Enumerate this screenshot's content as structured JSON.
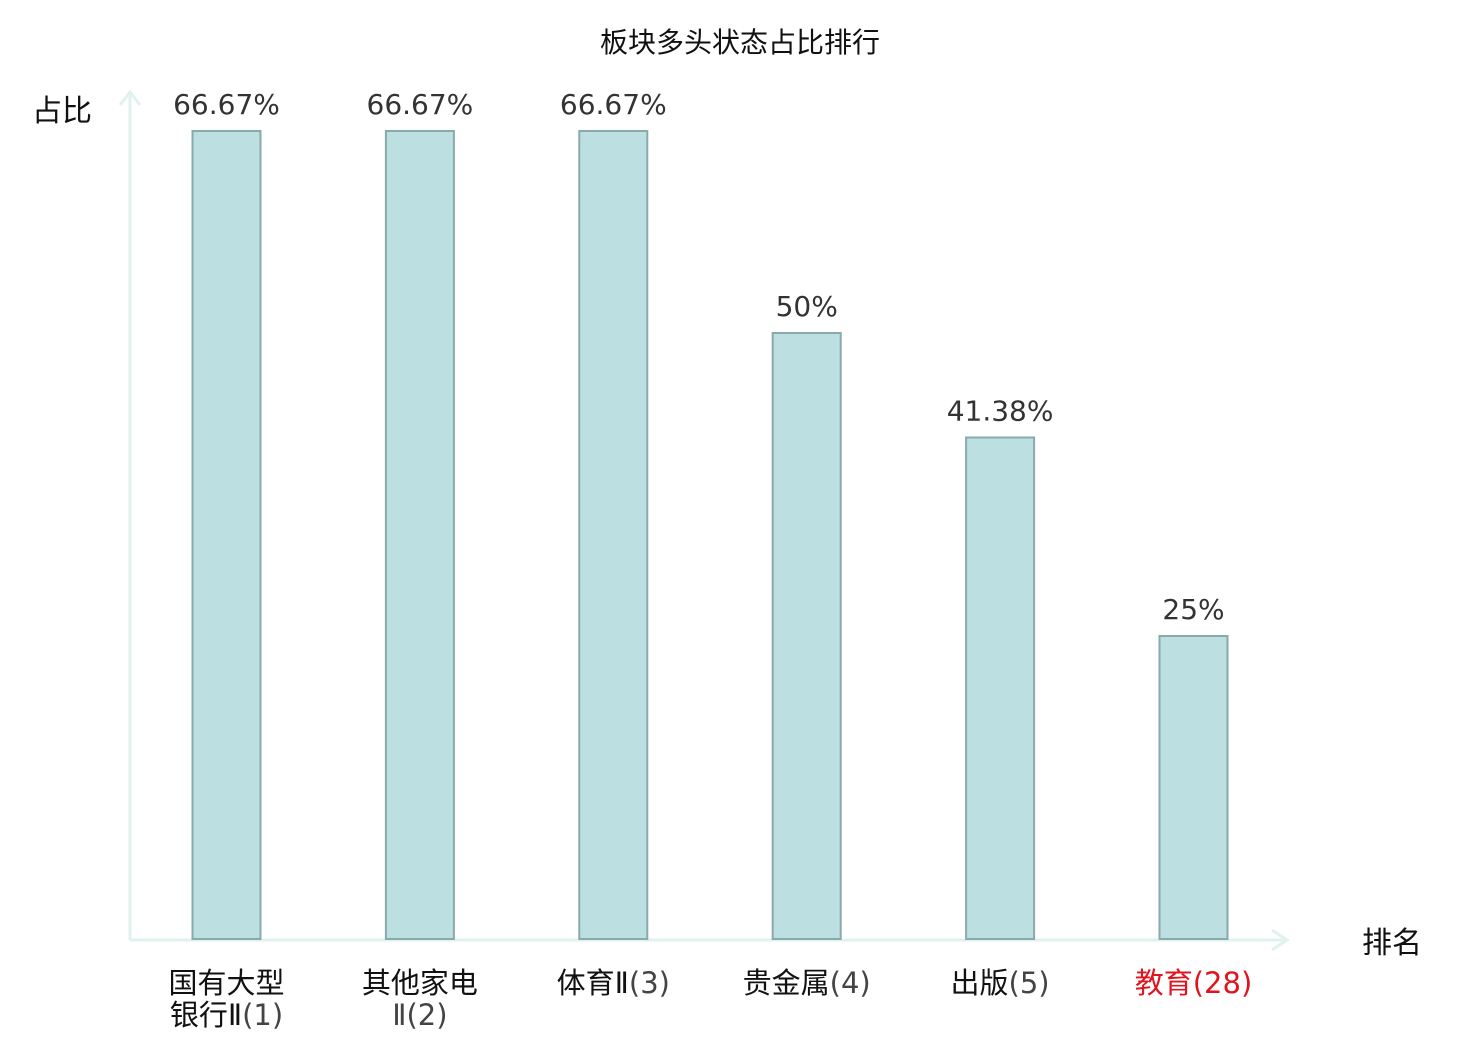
{
  "chart_data": {
    "type": "bar",
    "title": "板块多头状态占比排行",
    "ylabel": "占比",
    "xlabel": "排名",
    "categories": [
      {
        "name": [
          "国有大型",
          "银行Ⅱ"
        ],
        "rank": "(1)",
        "highlight": false
      },
      {
        "name": [
          "其他家电",
          ""
        ],
        "rank": "Ⅱ(2)",
        "highlight": false
      },
      {
        "name": [
          "体育Ⅱ"
        ],
        "rank": "(3)",
        "highlight": false
      },
      {
        "name": [
          "贵金属"
        ],
        "rank": "(4)",
        "highlight": false
      },
      {
        "name": [
          "出版"
        ],
        "rank": "(5)",
        "highlight": false
      },
      {
        "name": [
          "教育"
        ],
        "rank": "(28)",
        "highlight": true
      }
    ],
    "values": [
      66.67,
      66.67,
      66.67,
      50,
      41.38,
      25
    ],
    "value_labels": [
      "66.67%",
      "66.67%",
      "66.67%",
      "50%",
      "41.38%",
      "25%"
    ],
    "ylim": [
      0,
      66.67
    ],
    "grid": false,
    "legend": "none",
    "colors": {
      "bar_fill": "#bce0e2",
      "bar_stroke": "#8aa9aa",
      "axis": "#e0f2ef",
      "label_text": "#333333",
      "highlight_text": "#e0141e",
      "title_text": "#111111"
    }
  }
}
